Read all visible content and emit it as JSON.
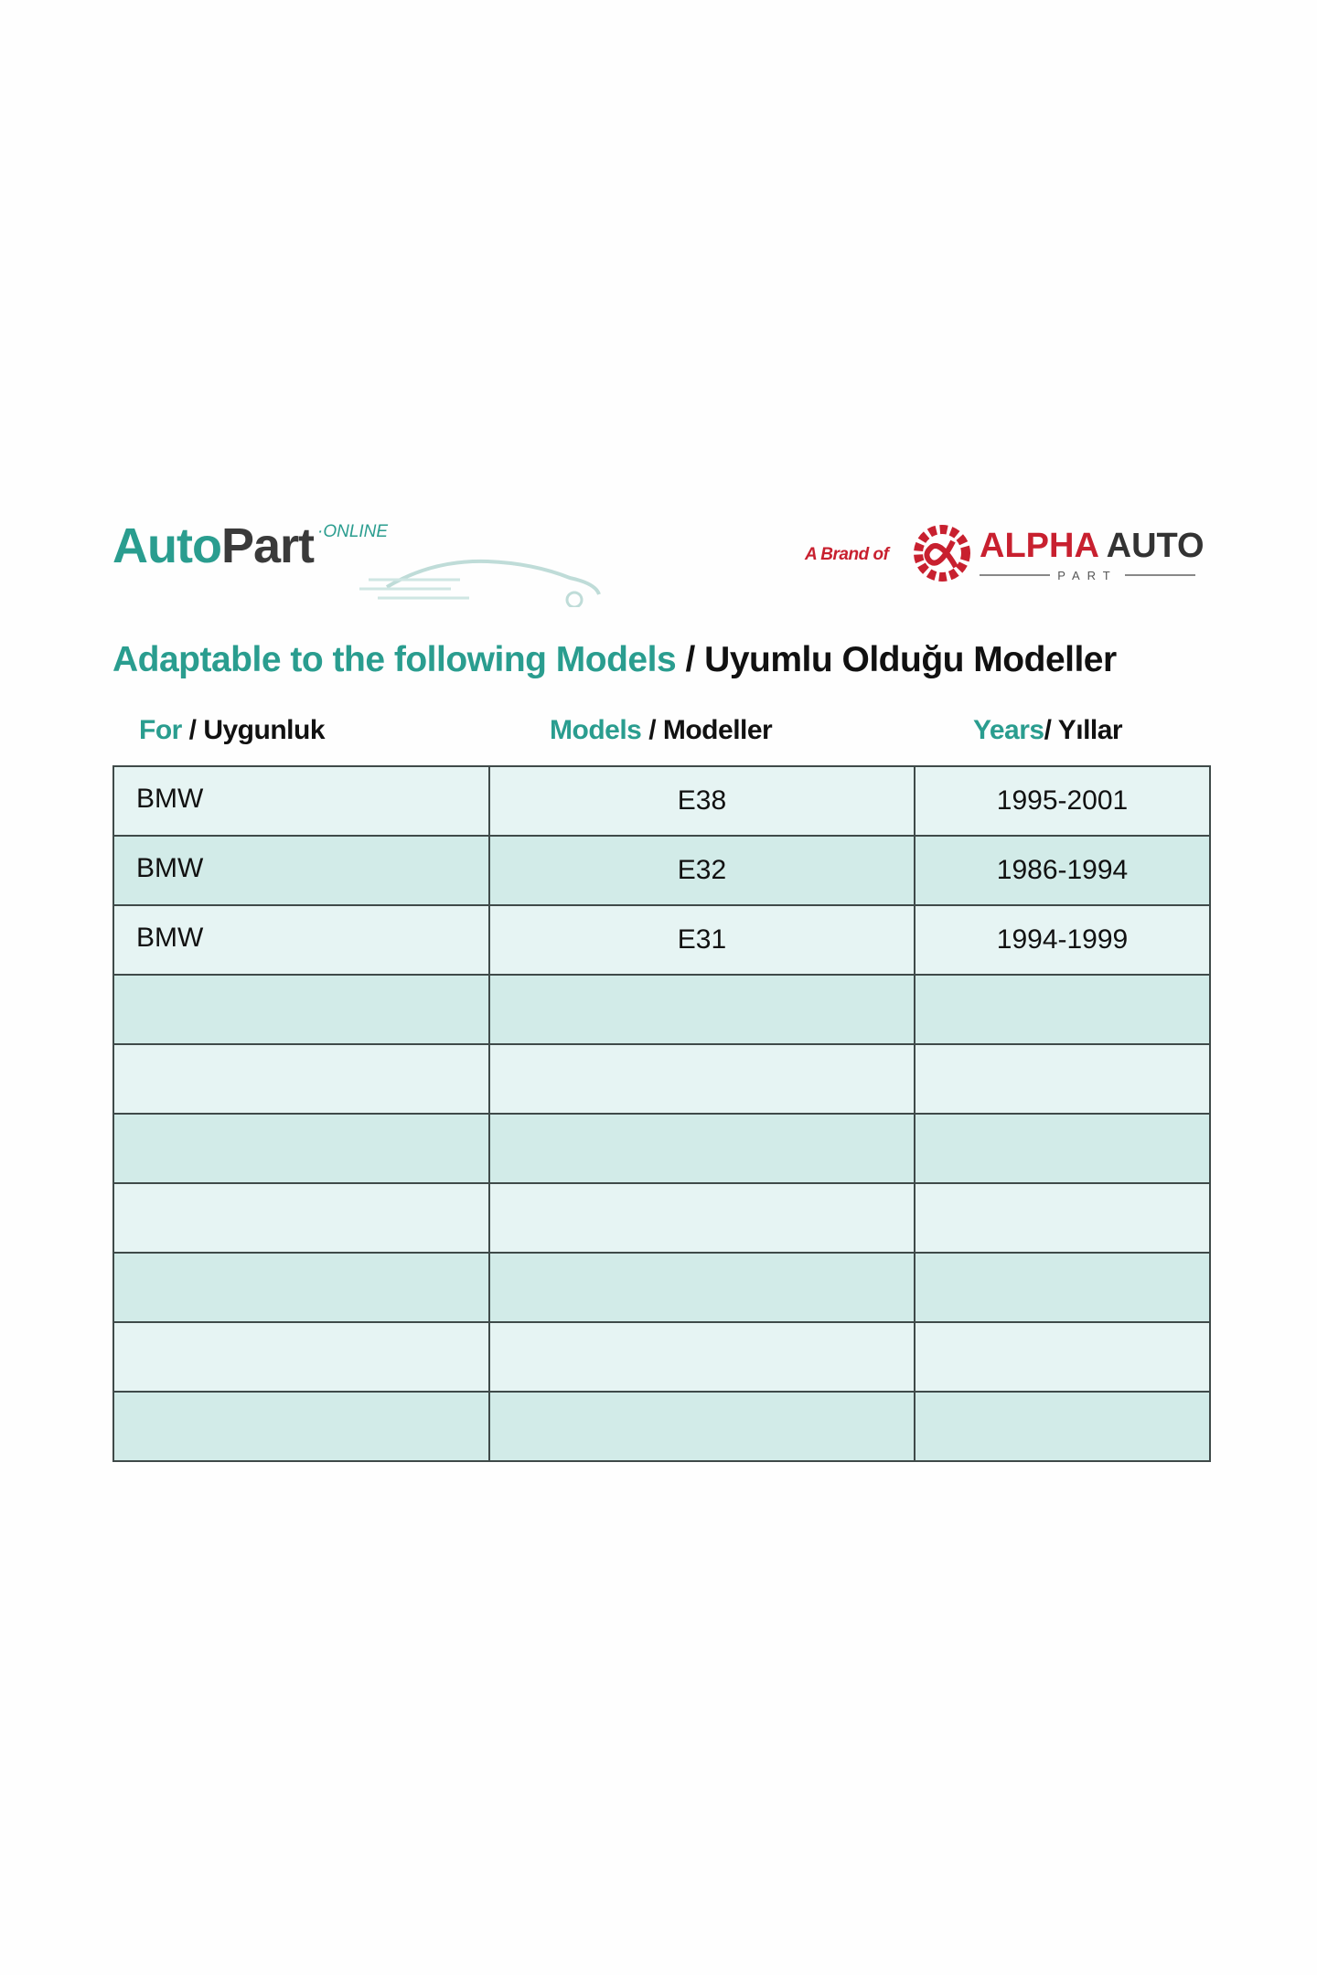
{
  "logos": {
    "left": {
      "auto": "Auto",
      "part": "Part",
      "online": "·ONLINE"
    },
    "right": {
      "brand_of": "A Brand of",
      "alpha": "ALPHA",
      "auto": "AUTO",
      "part": "PART"
    }
  },
  "title": {
    "en": "Adaptable to the following Models",
    "tr": " / Uyumlu Olduğu Modeller"
  },
  "headers": [
    {
      "en": "For",
      "tr": " / Uygunluk"
    },
    {
      "en": "Models",
      "tr": " / Modeller"
    },
    {
      "en": "Years",
      "tr": "/ Yıllar"
    }
  ],
  "rows": [
    [
      "BMW",
      "E38",
      "1995-2001"
    ],
    [
      "BMW",
      "E32",
      "1986-1994"
    ],
    [
      "BMW",
      "E31",
      "1994-1999"
    ],
    [
      "",
      "",
      ""
    ],
    [
      "",
      "",
      ""
    ],
    [
      "",
      "",
      ""
    ],
    [
      "",
      "",
      ""
    ],
    [
      "",
      "",
      ""
    ],
    [
      "",
      "",
      ""
    ],
    [
      "",
      "",
      ""
    ]
  ],
  "colors": {
    "accent": "#2a9d8f",
    "brand_red": "#c8202f",
    "row_light": "#e6f4f3",
    "row_dark": "#d2ebe8"
  }
}
